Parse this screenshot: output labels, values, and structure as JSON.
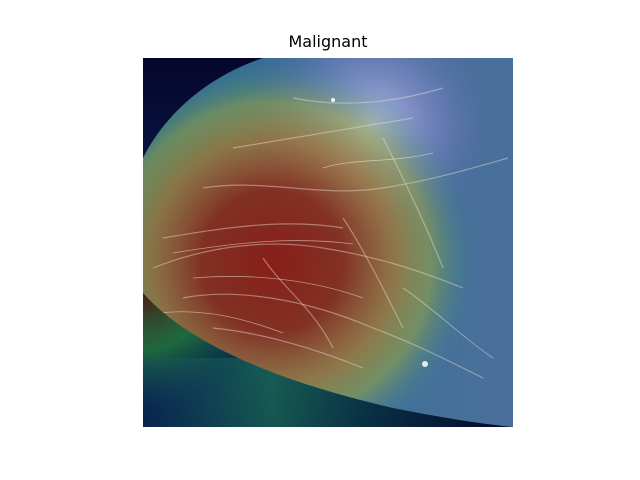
{
  "figure": {
    "title": "Malignant"
  },
  "colors": {
    "background": "#ffffff",
    "image_background": "#06062a",
    "tissue_base": "#5a6aa4",
    "heat_hot": "#8b1a12",
    "heat_warm": "#b3a83a",
    "heat_cool": "#2a8a8a",
    "heat_cold": "#1a1a6a"
  }
}
